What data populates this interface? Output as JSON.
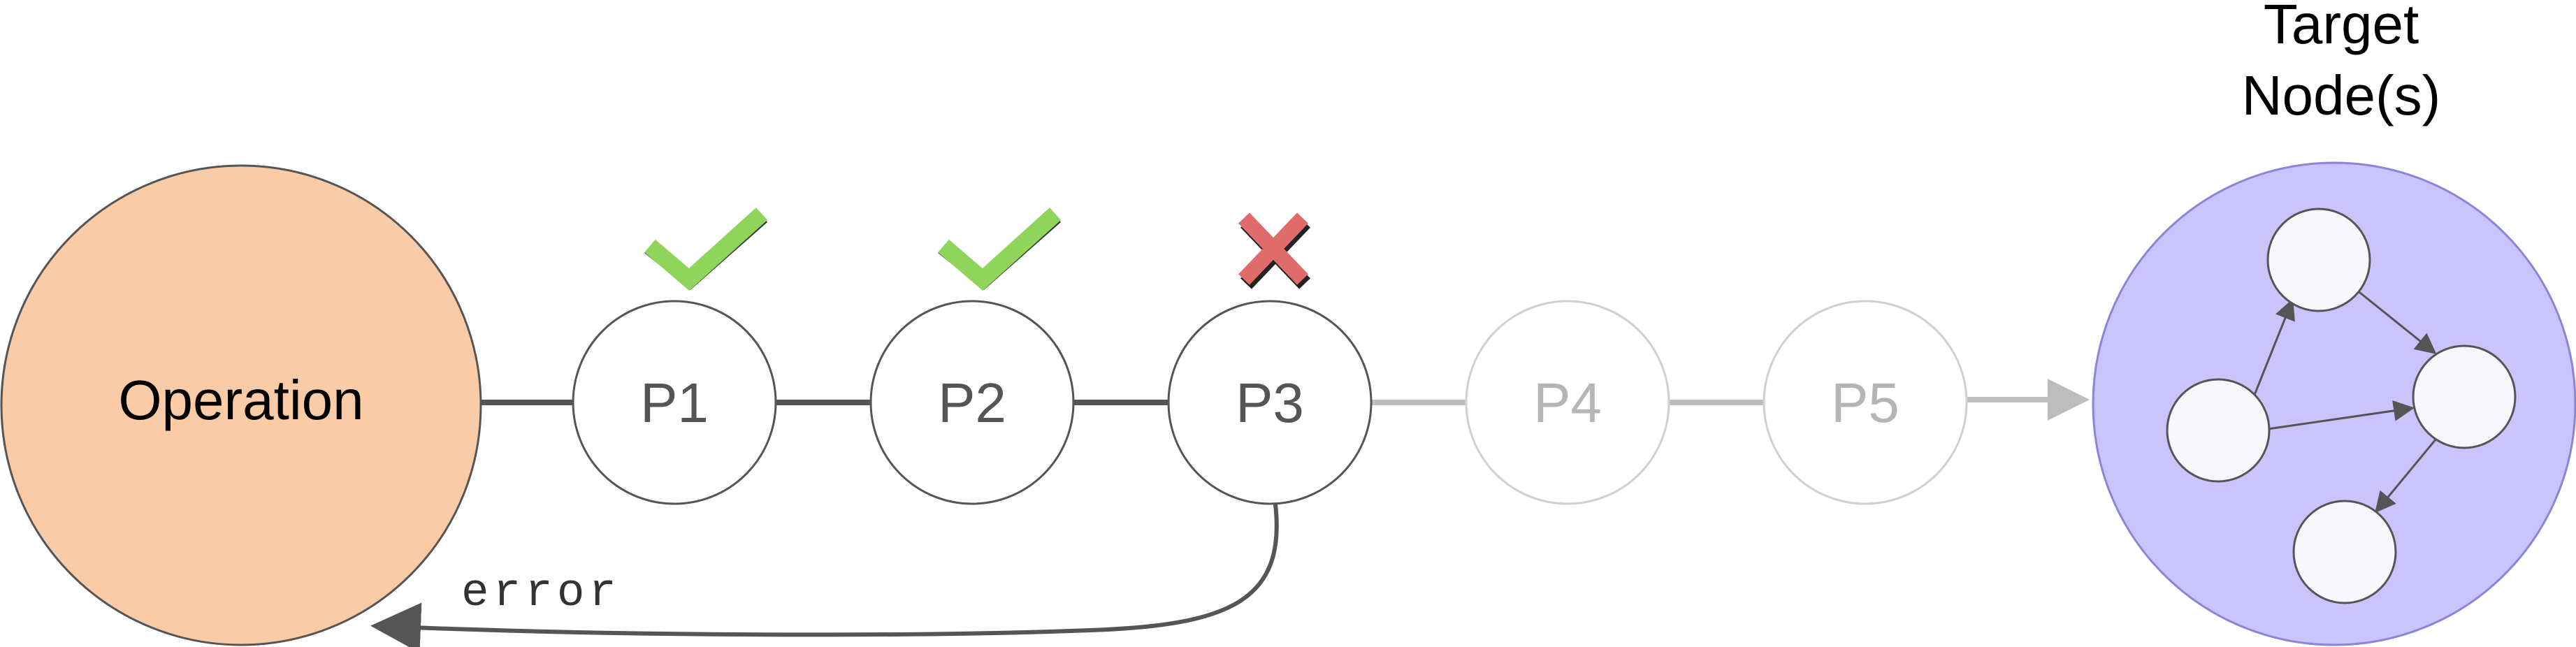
{
  "diagram": {
    "source": {
      "label": "Operation",
      "fill": "#f9cba7",
      "stroke": "#555555"
    },
    "target": {
      "label_line1": "Target",
      "label_line2": "Node(s)",
      "fill": "#cbc3fb",
      "stroke": "#8c84d6"
    },
    "steps": [
      {
        "label": "P1",
        "status": "passed",
        "active": true
      },
      {
        "label": "P2",
        "status": "passed",
        "active": true
      },
      {
        "label": "P3",
        "status": "failed",
        "active": true
      },
      {
        "label": "P4",
        "status": "pending",
        "active": false
      },
      {
        "label": "P5",
        "status": "pending",
        "active": false
      }
    ],
    "error_label": "error",
    "colors": {
      "check": "#8fd55c",
      "cross": "#e06b6b",
      "active_line": "#555555",
      "inactive_line": "#bdbdbd",
      "active_text": "#555555",
      "inactive_text": "#b5b5b5",
      "node_fill": "#f8f7fc"
    },
    "icons": [
      "check-icon",
      "cross-icon",
      "arrow-head-icon"
    ]
  }
}
